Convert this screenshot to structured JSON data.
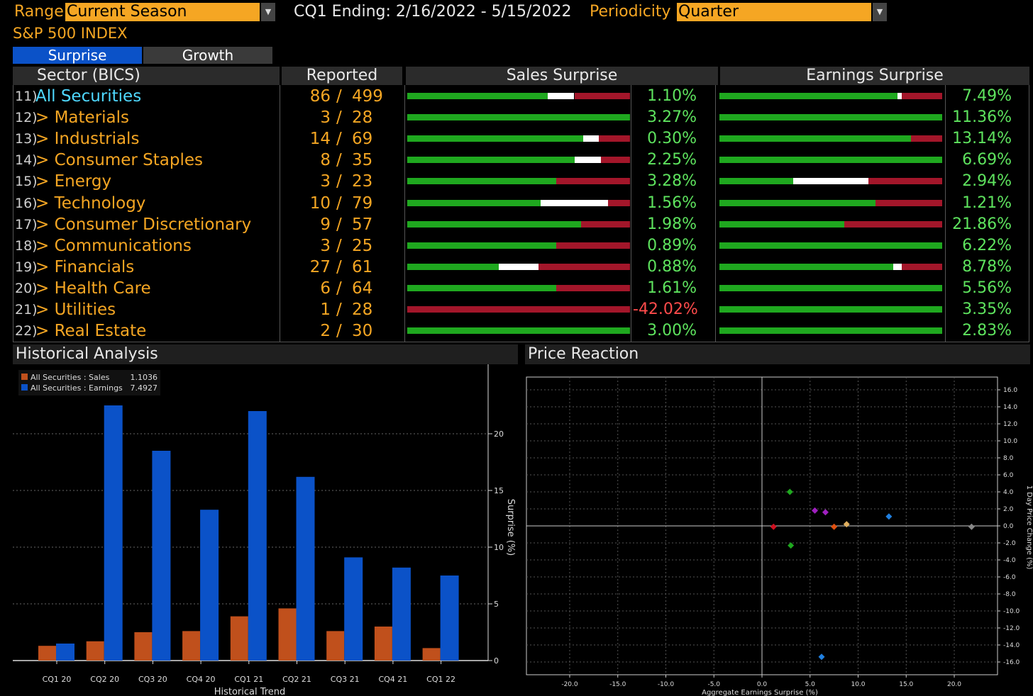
{
  "header": {
    "range_label": "Range",
    "range_value": "Current Season",
    "period_text": "CQ1 Ending: 2/16/2022 - 5/15/2022",
    "periodicity_label": "Periodicity",
    "periodicity_value": "Quarter",
    "index_title": "S&P 500 INDEX"
  },
  "tabs": [
    {
      "label": "Surprise"
    },
    {
      "label": "Growth"
    }
  ],
  "table": {
    "col_sector": "Sector (BICS)",
    "col_reported": "Reported",
    "col_sales": "Sales Surprise",
    "col_earnings": "Earnings Surprise",
    "rows": [
      {
        "num": "11)",
        "name": "All Securities",
        "rep": "86",
        "tot": "499",
        "sales": "1.10%",
        "earn": "7.49%",
        "sales_bar": [
          0.63,
          0.75
        ],
        "earn_bar": [
          0.8,
          0.82
        ]
      },
      {
        "num": "12)",
        "name": "> Materials",
        "rep": "3",
        "tot": "28",
        "sales": "3.27%",
        "earn": "11.36%",
        "sales_bar": [
          1.0,
          1.0
        ],
        "earn_bar": [
          1.0,
          1.0
        ]
      },
      {
        "num": "13)",
        "name": "> Industrials",
        "rep": "14",
        "tot": "69",
        "sales": "0.30%",
        "earn": "13.14%",
        "sales_bar": [
          0.79,
          0.86
        ],
        "earn_bar": [
          0.86,
          0.86
        ]
      },
      {
        "num": "14)",
        "name": "> Consumer Staples",
        "rep": "8",
        "tot": "35",
        "sales": "2.25%",
        "earn": "6.69%",
        "sales_bar": [
          0.75,
          0.87
        ],
        "earn_bar": [
          1.0,
          1.0
        ]
      },
      {
        "num": "15)",
        "name": "> Energy",
        "rep": "3",
        "tot": "23",
        "sales": "3.28%",
        "earn": "2.94%",
        "sales_bar": [
          0.67,
          0.67
        ],
        "earn_bar": [
          0.33,
          0.67
        ]
      },
      {
        "num": "16)",
        "name": "> Technology",
        "rep": "10",
        "tot": "79",
        "sales": "1.56%",
        "earn": "1.21%",
        "sales_bar": [
          0.6,
          0.9
        ],
        "earn_bar": [
          0.7,
          0.7
        ]
      },
      {
        "num": "17)",
        "name": "> Consumer Discretionary",
        "rep": "9",
        "tot": "57",
        "sales": "1.98%",
        "earn": "21.86%",
        "sales_bar": [
          0.78,
          0.78
        ],
        "earn_bar": [
          0.56,
          0.56
        ]
      },
      {
        "num": "18)",
        "name": "> Communications",
        "rep": "3",
        "tot": "25",
        "sales": "0.89%",
        "earn": "6.22%",
        "sales_bar": [
          0.67,
          0.67
        ],
        "earn_bar": [
          1.0,
          1.0
        ]
      },
      {
        "num": "19)",
        "name": "> Financials",
        "rep": "27",
        "tot": "61",
        "sales": "0.88%",
        "earn": "8.78%",
        "sales_bar": [
          0.41,
          0.59
        ],
        "earn_bar": [
          0.78,
          0.82
        ]
      },
      {
        "num": "20)",
        "name": "> Health Care",
        "rep": "6",
        "tot": "64",
        "sales": "1.61%",
        "earn": "5.56%",
        "sales_bar": [
          0.67,
          0.67
        ],
        "earn_bar": [
          1.0,
          1.0
        ]
      },
      {
        "num": "21)",
        "name": "> Utilities",
        "rep": "1",
        "tot": "28",
        "sales": "-42.02%",
        "earn": "3.35%",
        "sales_bar": [
          0.0,
          0.0
        ],
        "earn_bar": [
          1.0,
          1.0
        ]
      },
      {
        "num": "22)",
        "name": "> Real Estate",
        "rep": "2",
        "tot": "30",
        "sales": "3.00%",
        "earn": "2.83%",
        "sales_bar": [
          1.0,
          1.0
        ],
        "earn_bar": [
          1.0,
          1.0
        ]
      }
    ]
  },
  "historical": {
    "title": "Historical Analysis",
    "legend_sales": "All Securities : Sales",
    "legend_sales_val": "1.1036",
    "legend_earn": "All Securities : Earnings",
    "legend_earn_val": "7.4927",
    "xlabel": "Historical Trend",
    "ylabel": "Surprise (%)"
  },
  "price": {
    "title": "Price Reaction",
    "xlabel": "Aggregate Earnings Surprise (%)",
    "ylabel": "1 Day Price Change (%)"
  },
  "colors": {
    "sales": "#c0501c",
    "earnings": "#0b52c8",
    "green": "#1fa81f",
    "red": "#a3162a",
    "white": "#ffffff"
  },
  "chart_data": [
    {
      "type": "bar",
      "categories": [
        "CQ1 20",
        "CQ2 20",
        "CQ3 20",
        "CQ4 20",
        "CQ1 21",
        "CQ2 21",
        "CQ3 21",
        "CQ4 21",
        "CQ1 22"
      ],
      "series": [
        {
          "name": "All Securities : Sales",
          "values": [
            1.3,
            1.7,
            2.5,
            2.6,
            3.9,
            4.6,
            2.6,
            3.0,
            1.1
          ]
        },
        {
          "name": "All Securities : Earnings",
          "values": [
            1.5,
            22.5,
            18.5,
            13.3,
            22.0,
            16.2,
            9.1,
            8.2,
            7.5
          ]
        }
      ],
      "xlabel": "Historical Trend",
      "ylabel": "Surprise (%)",
      "yticks": [
        0,
        5,
        10,
        15,
        20
      ],
      "ylim": [
        0,
        25
      ]
    },
    {
      "type": "scatter",
      "xlabel": "Aggregate Earnings Surprise (%)",
      "ylabel": "1 Day Price Change (%)",
      "xticks": [
        -20,
        -15,
        -10,
        -5,
        0,
        5,
        10,
        15,
        20
      ],
      "xtick_labels": [
        "-20.0",
        "-15.0",
        "-10.0",
        "-5.0",
        "0.0",
        "5.0",
        "10.0",
        "15.0",
        "20.0"
      ],
      "yticks": [
        16,
        14,
        12,
        10,
        8,
        6,
        4,
        2,
        0,
        -2,
        -4,
        -6,
        -8,
        -10,
        -12,
        -14,
        -16
      ],
      "ytick_labels": [
        "16.0",
        "14.0",
        "12.0",
        "10.0",
        "8.0",
        "6.0",
        "4.0",
        "2.0",
        "0.0",
        "-2.0",
        "-4.0",
        "-6.0",
        "-8.0",
        "-10.0",
        "-12.0",
        "-14.0",
        "-16.0"
      ],
      "xlim": [
        -24.5,
        24.5
      ],
      "ylim": [
        -17.5,
        17.5
      ],
      "points": [
        {
          "x": 1.2,
          "y": -0.1,
          "color": "#d01020"
        },
        {
          "x": 2.9,
          "y": 4.0,
          "color": "#1fa81f"
        },
        {
          "x": 3.0,
          "y": -2.3,
          "color": "#1fa81f"
        },
        {
          "x": 5.5,
          "y": 1.8,
          "color": "#a020c0"
        },
        {
          "x": 6.6,
          "y": 1.6,
          "color": "#a020c0"
        },
        {
          "x": 7.5,
          "y": -0.1,
          "color": "#e05010"
        },
        {
          "x": 8.8,
          "y": 0.2,
          "color": "#e0b060"
        },
        {
          "x": 13.2,
          "y": 1.1,
          "color": "#2080e0"
        },
        {
          "x": 6.2,
          "y": -15.4,
          "color": "#2080e0"
        },
        {
          "x": 21.8,
          "y": -0.1,
          "color": "#888888"
        }
      ]
    }
  ]
}
